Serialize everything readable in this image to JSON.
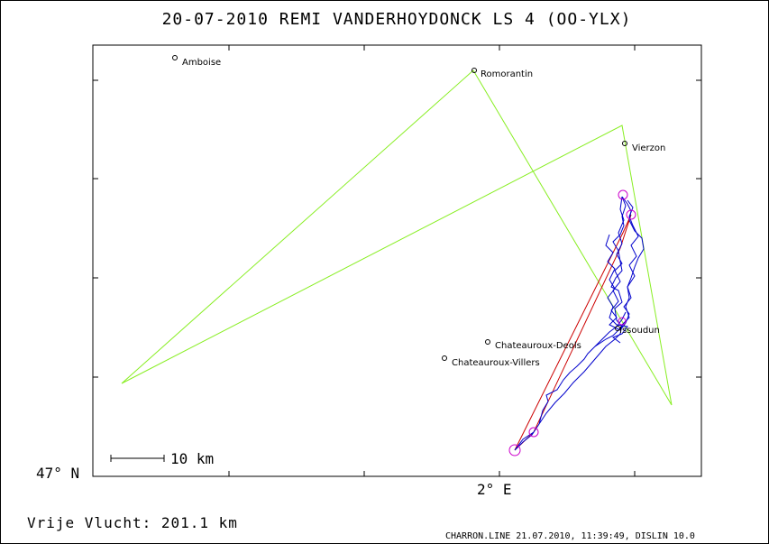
{
  "header": {
    "title": "20-07-2010    REMI VANDERHOYDONCK    LS 4 (OO-YLX)"
  },
  "axes": {
    "lat_label": "47° N",
    "lon_label": "2° E"
  },
  "scale_bar": {
    "label": "10 km"
  },
  "footer": {
    "distance": "Vrije Vlucht:  201.1 km",
    "credit": "CHARRON.LINE 21.07.2010, 11:39:49, DISLIN 10.0"
  },
  "places": [
    {
      "name": "Amboise"
    },
    {
      "name": "Romorantin"
    },
    {
      "name": "Vierzon"
    },
    {
      "name": "Issoudun"
    },
    {
      "name": "Chateauroux-Deols"
    },
    {
      "name": "Chateauroux-Villers"
    }
  ],
  "colors": {
    "task": "#88ee22",
    "track": "#0000cc",
    "optimized": "#cc0000",
    "turnpoint": "#cc00cc"
  }
}
